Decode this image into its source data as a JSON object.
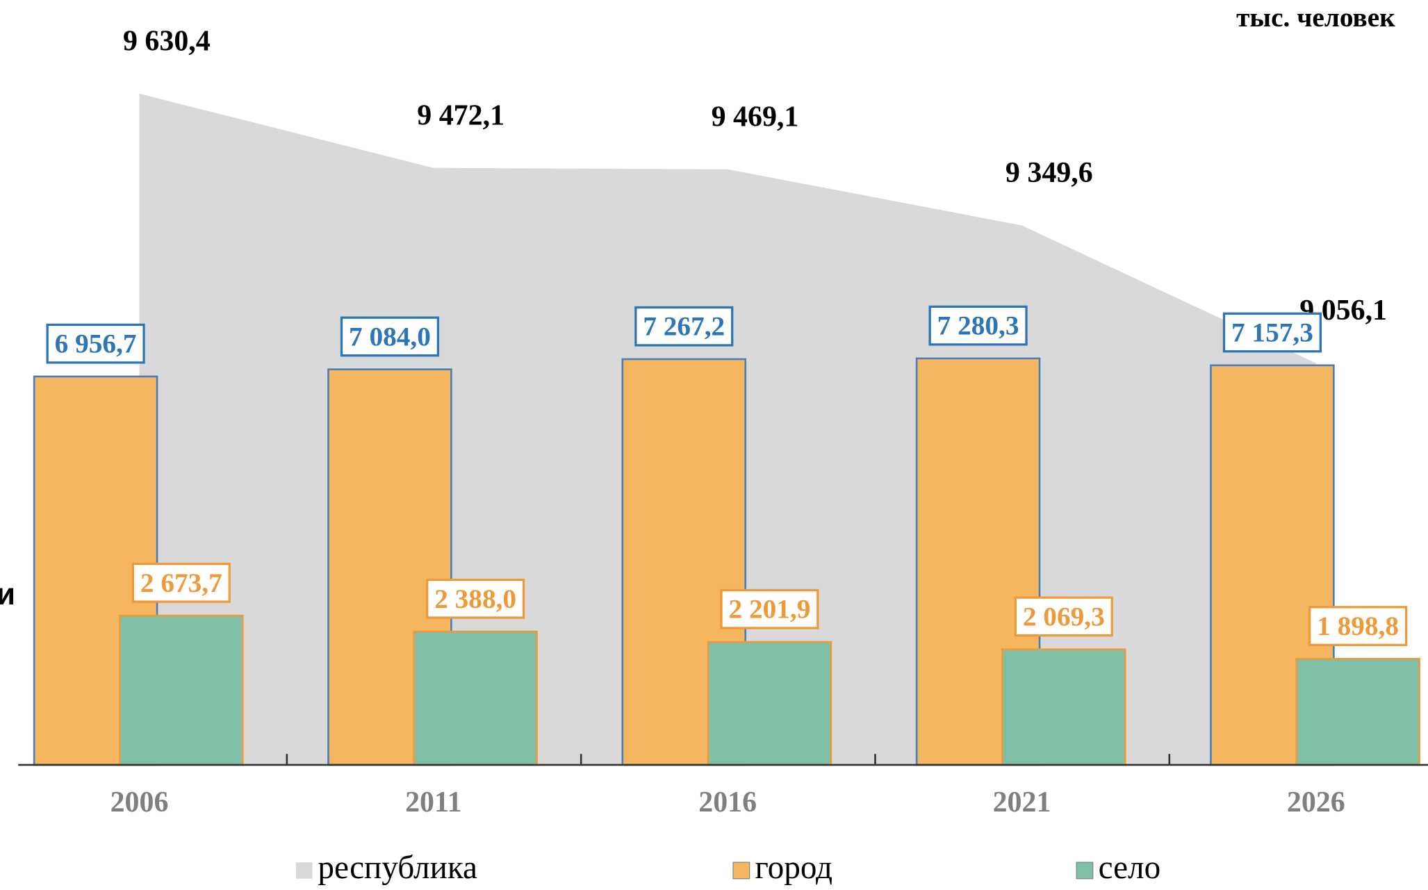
{
  "chart_data": {
    "type": "bar",
    "unit_label": "тыс. человек",
    "side_label": "и",
    "categories": [
      "2006",
      "2011",
      "2016",
      "2021",
      "2026"
    ],
    "ylim": [
      0,
      13700
    ],
    "y2lim": [
      8200,
      9830
    ],
    "series": [
      {
        "name": "республика",
        "type": "area",
        "axis": "y2",
        "color": "#d9d9d9",
        "values": [
          9630.4,
          9472.1,
          9469.1,
          9349.6,
          9056.1
        ],
        "value_labels": [
          "9 630,4",
          "9 472,1",
          "9 469,1",
          "9 349,6",
          "9 056,1"
        ]
      },
      {
        "name": "город",
        "type": "bar",
        "color": "#f6b65f",
        "edge": "#4a7ebb",
        "label_color": "#2e75b6",
        "values": [
          6956.7,
          7084.0,
          7267.2,
          7280.3,
          7157.3
        ],
        "value_labels": [
          "6 956,7",
          "7 084,0",
          "7 267,2",
          "7 280,3",
          "7 157,3"
        ]
      },
      {
        "name": "село",
        "type": "bar",
        "color": "#7fbfa5",
        "edge": "#ed9a3a",
        "label_color": "#ed9a3a",
        "values": [
          2673.7,
          2388.0,
          2201.9,
          2069.3,
          1898.8
        ],
        "value_labels": [
          "2 673,7",
          "2 388,0",
          "2 201,9",
          "2 069,3",
          "1 898,8"
        ]
      }
    ]
  }
}
